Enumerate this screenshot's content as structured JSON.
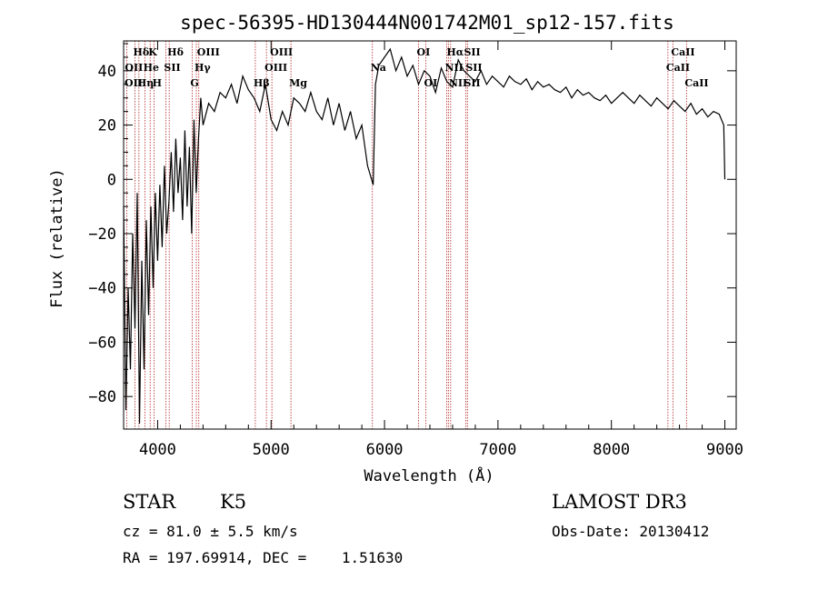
{
  "chart_data": {
    "type": "line",
    "title": "spec-56395-HD130444N001742M01_sp12-157.fits",
    "xlabel": "Wavelength (Å)",
    "ylabel": "Flux (relative)",
    "xlim": [
      3700,
      9100
    ],
    "ylim": [
      -92,
      51
    ],
    "xticks": [
      "4000",
      "5000",
      "6000",
      "7000",
      "8000",
      "9000"
    ],
    "yticks": [
      "−80",
      "−60",
      "−40",
      "−20",
      "0",
      "20",
      "40"
    ],
    "xtick_values": [
      4000,
      5000,
      6000,
      7000,
      8000,
      9000
    ],
    "ytick_values": [
      -80,
      -60,
      -40,
      -20,
      0,
      20,
      40
    ],
    "grid": false,
    "series": [
      {
        "x": [
          3700,
          3720,
          3740,
          3760,
          3780,
          3800,
          3820,
          3840,
          3860,
          3880,
          3900,
          3920,
          3940,
          3960,
          3980,
          4000,
          4020,
          4040,
          4060,
          4080,
          4100,
          4120,
          4140,
          4160,
          4180,
          4200,
          4220,
          4240,
          4260,
          4280,
          4300,
          4320,
          4340,
          4360,
          4380,
          4400,
          4450,
          4500,
          4550,
          4600,
          4650,
          4700,
          4750,
          4800,
          4850,
          4900,
          4950,
          5000,
          5050,
          5100,
          5150,
          5200,
          5250,
          5300,
          5350,
          5400,
          5450,
          5500,
          5550,
          5600,
          5650,
          5700,
          5750,
          5800,
          5850,
          5900,
          5920,
          5950,
          6000,
          6050,
          6100,
          6150,
          6200,
          6250,
          6300,
          6350,
          6400,
          6450,
          6500,
          6550,
          6600,
          6650,
          6700,
          6750,
          6800,
          6850,
          6900,
          6950,
          7000,
          7050,
          7100,
          7150,
          7200,
          7250,
          7300,
          7350,
          7400,
          7450,
          7500,
          7550,
          7600,
          7650,
          7700,
          7750,
          7800,
          7850,
          7900,
          7950,
          8000,
          8050,
          8100,
          8150,
          8200,
          8250,
          8300,
          8350,
          8400,
          8450,
          8500,
          8550,
          8600,
          8650,
          8700,
          8750,
          8800,
          8850,
          8900,
          8950,
          8990,
          9000
        ],
        "values": [
          -10,
          -85,
          -40,
          -70,
          -20,
          -55,
          -5,
          -90,
          -30,
          -70,
          -15,
          -50,
          -10,
          -40,
          -5,
          -30,
          -2,
          -25,
          5,
          -20,
          -8,
          10,
          -12,
          15,
          -5,
          8,
          -15,
          18,
          -10,
          12,
          -20,
          22,
          -5,
          15,
          30,
          20,
          28,
          25,
          32,
          30,
          35,
          28,
          38,
          33,
          30,
          25,
          35,
          22,
          18,
          25,
          20,
          30,
          28,
          25,
          32,
          25,
          22,
          30,
          20,
          28,
          18,
          25,
          15,
          20,
          5,
          -2,
          35,
          42,
          45,
          48,
          40,
          45,
          38,
          42,
          35,
          40,
          38,
          32,
          41,
          36,
          34,
          44,
          40,
          38,
          36,
          40,
          35,
          38,
          36,
          34,
          38,
          36,
          35,
          37,
          33,
          36,
          34,
          35,
          33,
          32,
          34,
          30,
          33,
          31,
          32,
          30,
          29,
          31,
          28,
          30,
          32,
          30,
          28,
          31,
          29,
          27,
          30,
          28,
          26,
          29,
          27,
          25,
          28,
          24,
          26,
          23,
          25,
          24,
          20,
          0
        ]
      }
    ],
    "lines": [
      {
        "label": "Hδ",
        "wl": 3800,
        "row": 1
      },
      {
        "label": "OII",
        "wl": 3727,
        "row": 2
      },
      {
        "label": "OII",
        "wl": 3700,
        "row": 3
      },
      {
        "label": "K",
        "wl": 3934,
        "row": 1
      },
      {
        "label": "He",
        "wl": 3889,
        "row": 2
      },
      {
        "label": "Hη",
        "wl": 3835,
        "row": 3
      },
      {
        "label": "SII",
        "wl": 4072,
        "row": 2
      },
      {
        "label": "H",
        "wl": 3969,
        "row": 3
      },
      {
        "label": "Hδ",
        "wl": 4102,
        "row": 1
      },
      {
        "label": "OIII",
        "wl": 4363,
        "row": 1
      },
      {
        "label": "Hγ",
        "wl": 4341,
        "row": 2
      },
      {
        "label": "G",
        "wl": 4304,
        "row": 3
      },
      {
        "label": "OIII",
        "wl": 5007,
        "row": 1
      },
      {
        "label": "OIII",
        "wl": 4959,
        "row": 2
      },
      {
        "label": "Hβ",
        "wl": 4861,
        "row": 3
      },
      {
        "label": "Mg",
        "wl": 5175,
        "row": 3
      },
      {
        "label": "Na",
        "wl": 5893,
        "row": 2
      },
      {
        "label": "OI",
        "wl": 6300,
        "row": 1
      },
      {
        "label": "OI",
        "wl": 6364,
        "row": 3
      },
      {
        "label": "Hα",
        "wl": 6563,
        "row": 1
      },
      {
        "label": "SII",
        "wl": 6716,
        "row": 1
      },
      {
        "label": "NII",
        "wl": 6548,
        "row": 2
      },
      {
        "label": "SII",
        "wl": 6731,
        "row": 2
      },
      {
        "label": "NII",
        "wl": 6583,
        "row": 3
      },
      {
        "label": "SII",
        "wl": 6716,
        "row": 3
      },
      {
        "label": "CaII",
        "wl": 8542,
        "row": 1
      },
      {
        "label": "CaII",
        "wl": 8498,
        "row": 2
      },
      {
        "label": "CaII",
        "wl": 8662,
        "row": 3
      }
    ]
  },
  "info": {
    "object_class": "STAR",
    "subclass": "K5",
    "survey": "LAMOST DR3",
    "cz": "cz = 81.0 ± 5.5 km/s",
    "obs_date": "Obs-Date: 20130412",
    "coords": "RA = 197.69914, DEC =    1.51630"
  },
  "colors": {
    "spectrum": "#000000",
    "line_markers": "#b22222",
    "axes": "#000000"
  }
}
